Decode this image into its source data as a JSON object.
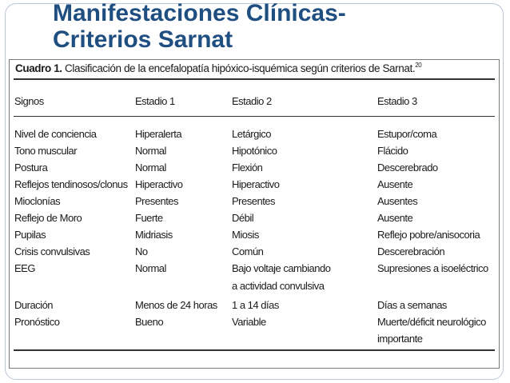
{
  "slide": {
    "title_line1": "Manifestaciones Clínicas-",
    "title_line2": "Criterios Sarnat"
  },
  "table": {
    "caption_bold": "Cuadro 1.",
    "caption_text": " Clasificación de la encefalopatía hipóxico-isquémica según criterios de Sarnat.",
    "caption_ref": "20",
    "headers": [
      "Signos",
      "Estadio 1",
      "Estadio 2",
      "Estadio 3"
    ],
    "rows": [
      [
        "Nivel de conciencia",
        "Hiperalerta",
        "Letárgico",
        "Estupor/coma"
      ],
      [
        "Tono muscular",
        "Normal",
        "Hipotónico",
        "Flácido"
      ],
      [
        "Postura",
        "Normal",
        "Flexión",
        "Descerebrado"
      ],
      [
        "Reflejos tendinosos/clonus",
        "Hiperactivo",
        "Hiperactivo",
        "Ausente"
      ],
      [
        "Mioclonías",
        "Presentes",
        "Presentes",
        "Ausentes"
      ],
      [
        "Reflejo de Moro",
        "Fuerte",
        "Débil",
        "Ausente"
      ],
      [
        "Pupilas",
        "Midriasis",
        "Miosis",
        "Reflejo pobre/anisocoria"
      ],
      [
        "Crisis convulsivas",
        "No",
        "Común",
        "Descerebración"
      ],
      [
        "EEG",
        "Normal",
        "Bajo voltaje cambiando",
        "Supresiones a isoeléctrico"
      ],
      [
        "",
        "",
        "a actividad convulsiva",
        ""
      ],
      [
        "Duración",
        "Menos de 24 horas",
        "1 a 14 días",
        "Días a semanas"
      ],
      [
        "Pronóstico",
        "Bueno",
        "Variable",
        "Muerte/déficit neurológico"
      ],
      [
        "",
        "",
        "",
        "importante"
      ]
    ]
  }
}
